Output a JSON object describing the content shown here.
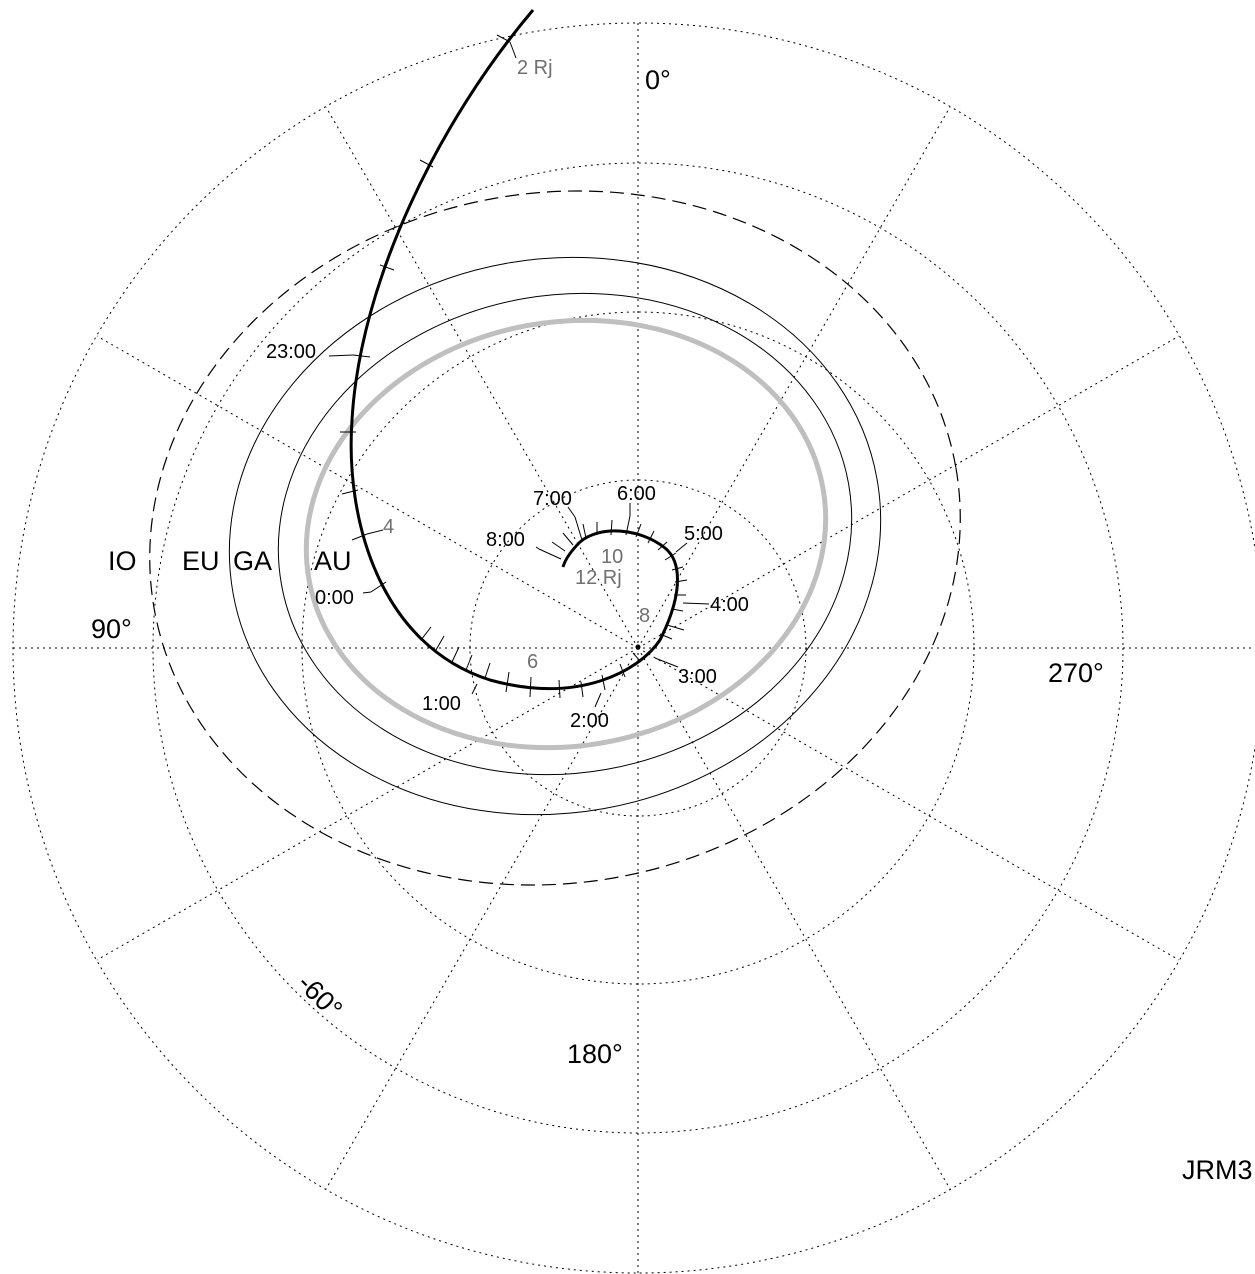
{
  "polar_grid": {
    "longitude_labels": [
      "0°",
      "90°",
      "180°",
      "270°"
    ],
    "latitude_label": "-60°"
  },
  "moon_labels": [
    "IO",
    "EU",
    "GA",
    "AU"
  ],
  "trajectory": {
    "time_labels": [
      "23:00",
      "0:00",
      "1:00",
      "2:00",
      "3:00",
      "4:00",
      "5:00",
      "6:00",
      "7:00",
      "8:00"
    ],
    "distance_labels": [
      "2 Rj",
      "4",
      "6",
      "8",
      "10",
      "12 Rj"
    ]
  },
  "model_label": "JRM3",
  "colors": {
    "trajectory": "#000000",
    "auroral_oval": "#bfbfbf",
    "distance_labels": "#707070"
  }
}
